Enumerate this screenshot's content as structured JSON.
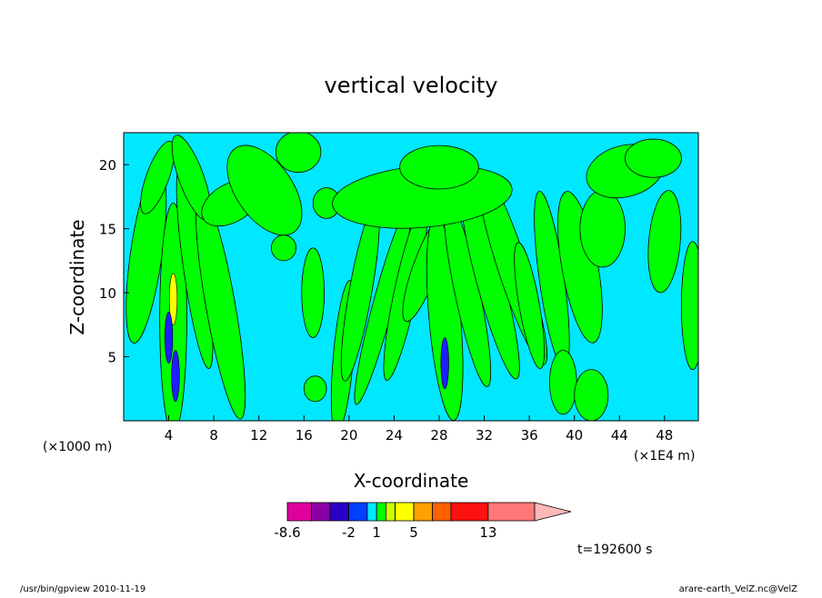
{
  "chart_data": {
    "type": "heatmap",
    "title": "vertical velocity",
    "xlabel": "X-coordinate",
    "ylabel": "Z-coordinate",
    "x_scale_note_left": "(×1000 m)",
    "x_scale_note_right": "(×1E4 m)",
    "xlim": [
      0,
      51
    ],
    "ylim": [
      0,
      22.5
    ],
    "x_ticks": [
      4,
      8,
      12,
      16,
      20,
      24,
      28,
      32,
      36,
      40,
      44,
      48
    ],
    "y_ticks": [
      5,
      10,
      15,
      20
    ],
    "colorbar": {
      "levels": [
        -8.6,
        -6,
        -4,
        -2,
        0,
        1,
        2,
        3,
        5,
        7,
        9,
        13,
        18
      ],
      "labels": [
        "-8.6",
        "-2",
        "1",
        "5",
        "13"
      ],
      "colors": [
        "#e0009e",
        "#8a00a8",
        "#2a00c8",
        "#0040ff",
        "#00e8ff",
        "#00ff00",
        "#c8ff00",
        "#ffff00",
        "#ffa000",
        "#ff6000",
        "#ff1010",
        "#ff7878",
        "#ffb8b8"
      ],
      "extend": "max"
    },
    "background_color": "#00e8ff",
    "positive_color": "#00ff00",
    "annotation": "t=192600 s"
  },
  "footer": {
    "left": "/usr/bin/gpview   2010-11-19",
    "right": "arare-earth_VelZ.nc@VelZ"
  }
}
